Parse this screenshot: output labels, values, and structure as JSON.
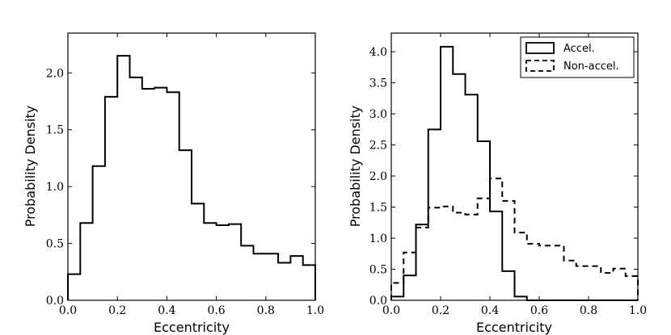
{
  "chart_data": [
    {
      "type": "histogram",
      "title": "",
      "xlabel": "Eccentricity",
      "ylabel": "Probability Density",
      "xlim": [
        0.0,
        1.0
      ],
      "ylim": [
        0.0,
        2.35
      ],
      "xticks": [
        "0.0",
        "0.2",
        "0.4",
        "0.6",
        "0.8",
        "1.0"
      ],
      "yticks": [
        "0.0",
        "0.5",
        "1.0",
        "1.5",
        "2.0"
      ],
      "bin_edges": [
        0.0,
        0.05,
        0.1,
        0.15,
        0.2,
        0.25,
        0.3,
        0.35,
        0.4,
        0.45,
        0.5,
        0.55,
        0.6,
        0.65,
        0.7,
        0.75,
        0.8,
        0.85,
        0.9,
        0.95,
        1.0
      ],
      "series": [
        {
          "style": "solid",
          "values": [
            0.23,
            0.68,
            1.18,
            1.79,
            2.15,
            1.96,
            1.86,
            1.87,
            1.83,
            1.32,
            0.85,
            0.68,
            0.66,
            0.67,
            0.48,
            0.41,
            0.41,
            0.33,
            0.39,
            0.31
          ]
        }
      ],
      "legend": null,
      "grid": false
    },
    {
      "type": "histogram",
      "title": "",
      "xlabel": "Eccentricity",
      "ylabel": "Probability Density",
      "xlim": [
        0.0,
        1.0
      ],
      "ylim": [
        0.0,
        4.3
      ],
      "xticks": [
        "0.0",
        "0.2",
        "0.4",
        "0.6",
        "0.8",
        "1.0"
      ],
      "yticks": [
        "0.0",
        "0.5",
        "1.0",
        "1.5",
        "2.0",
        "2.5",
        "3.0",
        "3.5",
        "4.0"
      ],
      "bin_edges": [
        0.0,
        0.05,
        0.1,
        0.15,
        0.2,
        0.25,
        0.3,
        0.35,
        0.4,
        0.45,
        0.5,
        0.55,
        0.6,
        0.65,
        0.7,
        0.75,
        0.8,
        0.85,
        0.9,
        0.95,
        1.0
      ],
      "series": [
        {
          "name": "Accel.",
          "style": "solid",
          "values": [
            0.06,
            0.4,
            1.22,
            2.75,
            4.08,
            3.64,
            3.31,
            2.56,
            1.43,
            0.47,
            0.06,
            0,
            0,
            0,
            0,
            0,
            0,
            0,
            0,
            0
          ]
        },
        {
          "name": "Non-accel.",
          "style": "dashed",
          "values": [
            0.28,
            0.77,
            1.17,
            1.49,
            1.51,
            1.41,
            1.38,
            1.64,
            1.96,
            1.6,
            1.09,
            0.91,
            0.88,
            0.88,
            0.64,
            0.55,
            0.55,
            0.44,
            0.51,
            0.39
          ]
        }
      ],
      "legend": "top-right",
      "grid": false
    }
  ]
}
